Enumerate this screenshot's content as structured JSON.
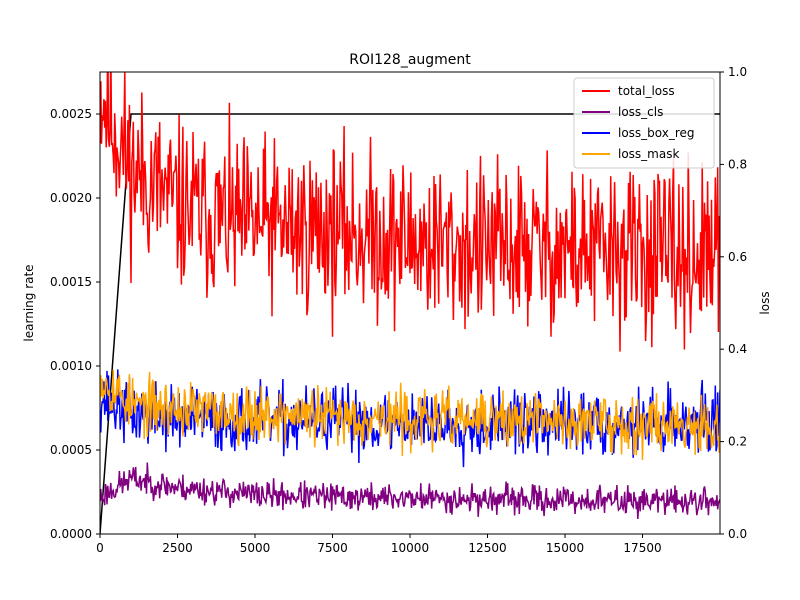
{
  "chart_data": {
    "type": "line",
    "title": "ROI128_augment",
    "xlabel": "",
    "ylabel_left": "learning rate",
    "ylabel_right": "loss",
    "xlim": [
      0,
      19999
    ],
    "ylim_left": [
      0,
      0.00275
    ],
    "ylim_right": [
      0,
      1.0
    ],
    "x_ticks": [
      0,
      2500,
      5000,
      7500,
      10000,
      12500,
      15000,
      17500
    ],
    "x_tick_labels": [
      "0",
      "2500",
      "5000",
      "7500",
      "10000",
      "12500",
      "15000",
      "17500"
    ],
    "y_left_ticks": [
      0,
      0.0005,
      0.001,
      0.0015,
      0.002,
      0.0025
    ],
    "y_left_tick_labels": [
      "0.0000",
      "0.0005",
      "0.0010",
      "0.0015",
      "0.0020",
      "0.0025"
    ],
    "y_right_ticks": [
      0,
      0.2,
      0.4,
      0.6,
      0.8,
      1.0
    ],
    "y_right_tick_labels": [
      "0.0",
      "0.2",
      "0.4",
      "0.6",
      "0.8",
      "1.0"
    ],
    "grid": false,
    "legend_position": "top-right",
    "learning_rate": {
      "axis": "left",
      "color": "#000000",
      "x": [
        0,
        1000,
        19999
      ],
      "values": [
        0.0,
        0.0025,
        0.0025
      ]
    },
    "series": [
      {
        "name": "total_loss",
        "color": "#ff0000",
        "axis": "right",
        "x": [
          0,
          1000,
          1500,
          2500,
          3500,
          4500,
          5500,
          6500,
          7500,
          8500,
          9500,
          10500,
          11500,
          12500,
          13500,
          14500,
          15500,
          16500,
          17500,
          18500,
          19999
        ],
        "values": [
          0.96,
          0.79,
          0.77,
          0.71,
          0.69,
          0.67,
          0.67,
          0.66,
          0.66,
          0.65,
          0.64,
          0.63,
          0.62,
          0.62,
          0.62,
          0.62,
          0.61,
          0.61,
          0.61,
          0.6,
          0.6
        ],
        "noise": 0.09,
        "seed": 11
      },
      {
        "name": "loss_cls",
        "color": "#800080",
        "axis": "right",
        "x": [
          0,
          1000,
          2500,
          5000,
          7500,
          10000,
          12500,
          15000,
          17500,
          19999
        ],
        "values": [
          0.08,
          0.12,
          0.1,
          0.085,
          0.08,
          0.078,
          0.075,
          0.073,
          0.072,
          0.07
        ],
        "noise": 0.015,
        "seed": 23
      },
      {
        "name": "loss_box_reg",
        "color": "#0000ff",
        "axis": "right",
        "x": [
          0,
          1000,
          2500,
          5000,
          7500,
          10000,
          12500,
          15000,
          17500,
          19999
        ],
        "values": [
          0.3,
          0.26,
          0.25,
          0.245,
          0.245,
          0.24,
          0.24,
          0.24,
          0.24,
          0.245
        ],
        "noise": 0.035,
        "seed": 37
      },
      {
        "name": "loss_mask",
        "color": "#ffa500",
        "axis": "right",
        "x": [
          0,
          1000,
          2500,
          5000,
          7500,
          10000,
          12500,
          15000,
          17500,
          19999
        ],
        "values": [
          0.34,
          0.28,
          0.27,
          0.26,
          0.255,
          0.25,
          0.245,
          0.245,
          0.24,
          0.24
        ],
        "noise": 0.03,
        "seed": 53
      }
    ]
  }
}
